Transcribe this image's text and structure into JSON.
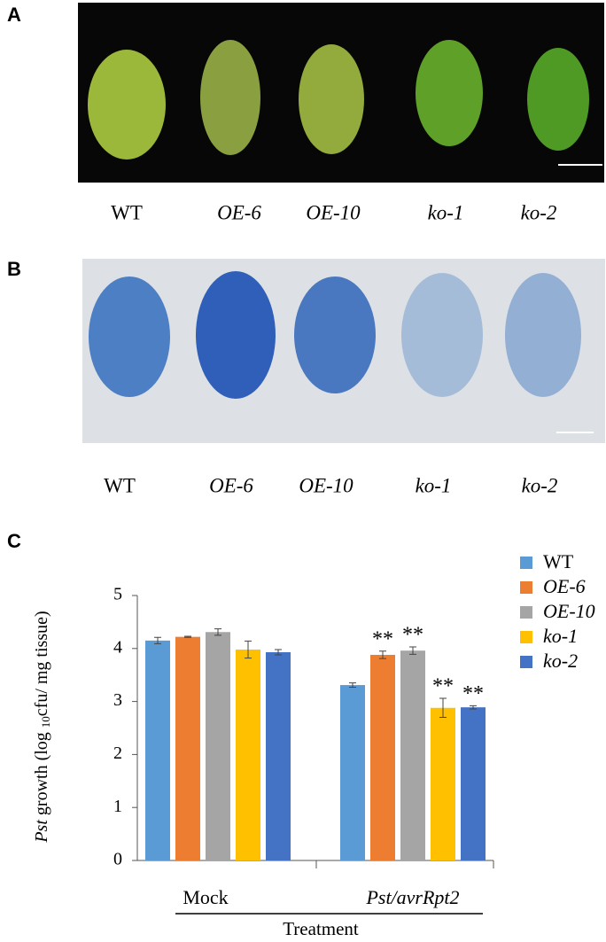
{
  "panel_a": {
    "letter": "A",
    "labels": [
      "WT",
      "OE-6",
      "OE-10",
      "ko-1",
      "ko-2"
    ]
  },
  "panel_b": {
    "letter": "B",
    "labels": [
      "WT",
      "OE-6",
      "OE-10",
      "ko-1",
      "ko-2"
    ]
  },
  "chart_data": {
    "type": "bar",
    "letter": "C",
    "ylabel": [
      "Pst",
      " growth (log ",
      "10",
      "cfu/ mg tissue)"
    ],
    "xlabel": "Treatment",
    "categories": [
      "Mock",
      "Pst/avrRpt2"
    ],
    "ylim": [
      0,
      5
    ],
    "yticks": [
      0,
      1,
      2,
      3,
      4,
      5
    ],
    "series": [
      {
        "name": "WT",
        "color": "#5b9bd5",
        "italic": false,
        "values": [
          4.15,
          3.31
        ],
        "errors": [
          0.06,
          0.04
        ]
      },
      {
        "name": "OE-6",
        "color": "#ed7d31",
        "italic": true,
        "values": [
          4.22,
          3.88
        ],
        "errors": [
          0.01,
          0.07
        ],
        "significance": [
          null,
          "**"
        ]
      },
      {
        "name": "OE-10",
        "color": "#a5a5a5",
        "italic": true,
        "values": [
          4.31,
          3.96
        ],
        "errors": [
          0.06,
          0.07
        ],
        "significance": [
          null,
          "**"
        ]
      },
      {
        "name": "ko-1",
        "color": "#ffc000",
        "italic": true,
        "values": [
          3.98,
          2.88
        ],
        "errors": [
          0.16,
          0.18
        ],
        "significance": [
          null,
          "**"
        ]
      },
      {
        "name": "ko-2",
        "color": "#4472c4",
        "italic": true,
        "values": [
          3.93,
          2.89
        ],
        "errors": [
          0.05,
          0.03
        ],
        "significance": [
          null,
          "**"
        ]
      }
    ]
  }
}
